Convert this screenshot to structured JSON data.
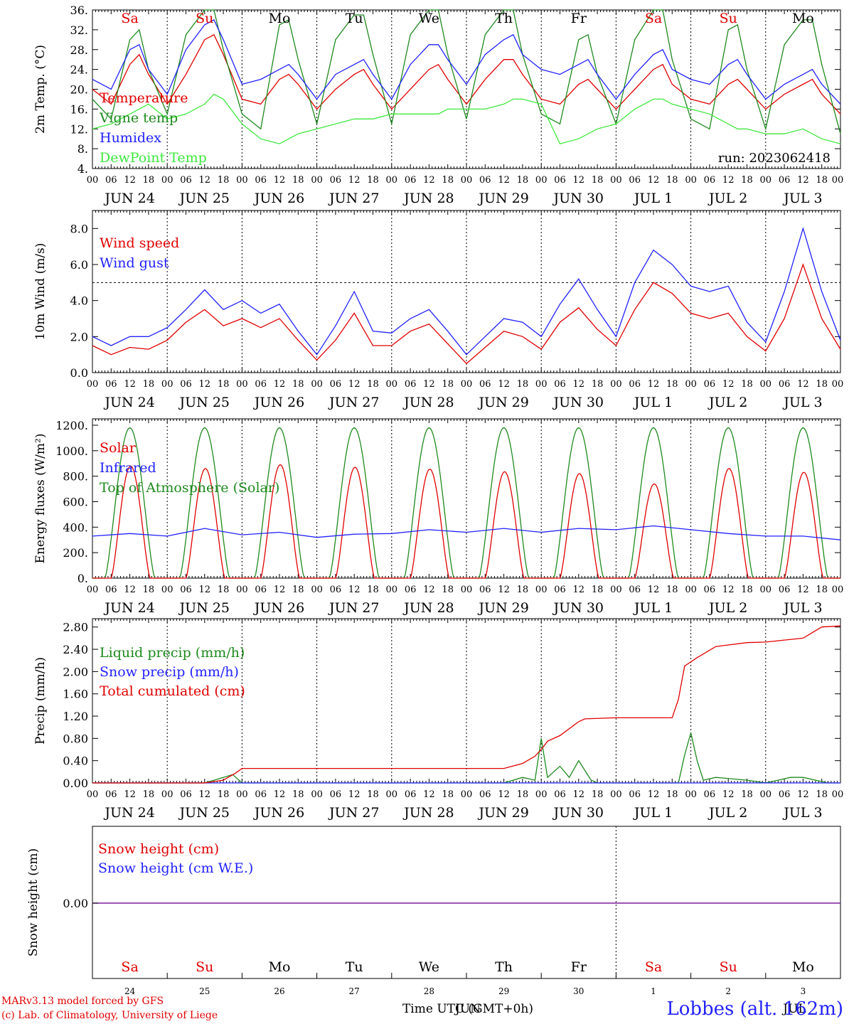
{
  "days": {
    "names": [
      "Sa",
      "Su",
      "Mo",
      "Tu",
      "We",
      "Th",
      "Fr",
      "Sa",
      "Su",
      "Mo"
    ],
    "colors": [
      "#e00000",
      "#e00000",
      "#000000",
      "#000000",
      "#000000",
      "#000000",
      "#000000",
      "#e00000",
      "#e00000",
      "#000000"
    ],
    "dates": [
      "JUN 24",
      "JUN 25",
      "JUN 26",
      "JUN 27",
      "JUN 28",
      "JUN 29",
      "JUN 30",
      "JUL  1",
      "JUL  2",
      "JUL  3"
    ],
    "day_numbers": [
      "24",
      "25",
      "26",
      "27",
      "28",
      "29",
      "30",
      "1",
      "2",
      "3"
    ],
    "hours": [
      "00",
      "06",
      "12",
      "18"
    ],
    "end_hour": "00"
  },
  "chart_data": [
    {
      "type": "line",
      "ylabel": "2m Temp. (°C)",
      "ylim": [
        4,
        36
      ],
      "yticks": [
        "4.",
        "8.",
        "12.",
        "16.",
        "20.",
        "24.",
        "28.",
        "32.",
        "36."
      ],
      "annotation": "run: 2023062418",
      "x_unit": "hours since JUN 24 00 UTC",
      "series": [
        {
          "name": "Temperature",
          "color": "#e00000",
          "x": [
            0,
            6,
            12,
            15,
            18,
            24,
            30,
            36,
            39,
            42,
            48,
            54,
            60,
            63,
            66,
            72,
            78,
            84,
            87,
            90,
            96,
            102,
            108,
            111,
            114,
            120,
            126,
            132,
            135,
            138,
            144,
            150,
            156,
            159,
            162,
            168,
            174,
            180,
            183,
            186,
            192,
            198,
            204,
            207,
            210,
            216,
            222,
            228,
            231,
            234,
            240
          ],
          "y": [
            20,
            17,
            25,
            27,
            23,
            17,
            23,
            30,
            31,
            27,
            18,
            17,
            22,
            23,
            21,
            16,
            20,
            23,
            24,
            21,
            16,
            20,
            24,
            25,
            22,
            17,
            22,
            26,
            26,
            23,
            18,
            17,
            21,
            22,
            20,
            16,
            20,
            24,
            25,
            21,
            18,
            17,
            21,
            22,
            20,
            16,
            19,
            21,
            22,
            19,
            15
          ]
        },
        {
          "name": "Vigne temp",
          "color": "#1e8a1e",
          "x": [
            0,
            6,
            12,
            15,
            18,
            24,
            30,
            36,
            39,
            42,
            48,
            54,
            60,
            63,
            66,
            72,
            78,
            84,
            87,
            90,
            96,
            102,
            108,
            111,
            114,
            120,
            126,
            132,
            135,
            138,
            144,
            150,
            156,
            159,
            162,
            168,
            174,
            180,
            183,
            186,
            192,
            198,
            204,
            207,
            210,
            216,
            222,
            228,
            231,
            234,
            240
          ],
          "y": [
            18,
            14,
            30,
            32,
            24,
            15,
            31,
            36,
            36,
            28,
            15,
            12,
            33,
            34,
            26,
            13,
            30,
            35,
            35,
            27,
            13,
            31,
            36,
            36,
            27,
            14,
            31,
            36,
            36,
            27,
            15,
            13,
            30,
            31,
            23,
            13,
            30,
            36,
            36,
            26,
            14,
            12,
            32,
            33,
            24,
            12,
            29,
            34,
            34,
            25,
            11
          ]
        },
        {
          "name": "Humidex",
          "color": "#2222ff",
          "x": [
            0,
            6,
            12,
            15,
            18,
            24,
            30,
            36,
            39,
            42,
            48,
            54,
            60,
            63,
            66,
            72,
            78,
            84,
            87,
            90,
            96,
            102,
            108,
            111,
            114,
            120,
            126,
            132,
            135,
            138,
            144,
            150,
            156,
            159,
            162,
            168,
            174,
            180,
            183,
            186,
            192,
            198,
            204,
            207,
            210,
            216,
            222,
            228,
            231,
            234,
            240
          ],
          "y": [
            22,
            20,
            28,
            29,
            24,
            19,
            28,
            33,
            34,
            30,
            21,
            22,
            24,
            25,
            23,
            18,
            23,
            25,
            26,
            23,
            18,
            25,
            29,
            29,
            26,
            21,
            27,
            30,
            31,
            27,
            24,
            23,
            25,
            26,
            23,
            18,
            23,
            27,
            28,
            24,
            22,
            21,
            25,
            26,
            23,
            18,
            21,
            23,
            24,
            21,
            17
          ]
        },
        {
          "name": "DewPoint Temp",
          "color": "#3ee83e",
          "x": [
            0,
            6,
            12,
            15,
            18,
            24,
            30,
            36,
            39,
            42,
            48,
            54,
            60,
            63,
            66,
            72,
            78,
            84,
            87,
            90,
            96,
            102,
            108,
            111,
            114,
            120,
            126,
            132,
            135,
            138,
            144,
            150,
            156,
            159,
            162,
            168,
            174,
            180,
            183,
            186,
            192,
            198,
            204,
            207,
            210,
            216,
            222,
            228,
            231,
            234,
            240
          ],
          "y": [
            12,
            13,
            15,
            16,
            17,
            14,
            15,
            17,
            19,
            18,
            13,
            10,
            9,
            10,
            11,
            12,
            13,
            14,
            14,
            14,
            15,
            15,
            15,
            15,
            16,
            16,
            16,
            17,
            18,
            18,
            17,
            9,
            10,
            11,
            12,
            13,
            16,
            18,
            18,
            17,
            16,
            15,
            13,
            12,
            12,
            11,
            11,
            12,
            11,
            10,
            9
          ]
        }
      ]
    },
    {
      "type": "line",
      "ylabel": "10m Wind (m/s)",
      "ylim": [
        0,
        9
      ],
      "yticks": [
        "0.0",
        "2.0",
        "4.0",
        "6.0",
        "8.0"
      ],
      "reference_line": 5,
      "x_unit": "hours since JUN 24 00 UTC",
      "series": [
        {
          "name": "Wind speed",
          "color": "#e00000",
          "x": [
            0,
            6,
            12,
            18,
            24,
            30,
            36,
            42,
            48,
            54,
            60,
            66,
            72,
            78,
            84,
            90,
            96,
            102,
            108,
            114,
            120,
            126,
            132,
            138,
            144,
            150,
            156,
            162,
            168,
            174,
            180,
            186,
            192,
            198,
            204,
            210,
            216,
            222,
            228,
            234,
            240
          ],
          "y": [
            1.5,
            1.0,
            1.4,
            1.3,
            1.8,
            2.8,
            3.5,
            2.6,
            3.0,
            2.5,
            3.0,
            1.8,
            0.7,
            1.8,
            3.3,
            1.5,
            1.5,
            2.3,
            2.7,
            1.6,
            0.5,
            1.4,
            2.3,
            2.0,
            1.3,
            2.8,
            3.6,
            2.4,
            1.5,
            3.5,
            5.0,
            4.4,
            3.3,
            3.0,
            3.3,
            2.0,
            1.2,
            3.0,
            6.0,
            3.0,
            1.3
          ]
        },
        {
          "name": "Wind gust",
          "color": "#2222ff",
          "x": [
            0,
            6,
            12,
            18,
            24,
            30,
            36,
            42,
            48,
            54,
            60,
            66,
            72,
            78,
            84,
            90,
            96,
            102,
            108,
            114,
            120,
            126,
            132,
            138,
            144,
            150,
            156,
            162,
            168,
            174,
            180,
            186,
            192,
            198,
            204,
            210,
            216,
            222,
            228,
            234,
            240
          ],
          "y": [
            2.0,
            1.5,
            2.0,
            2.0,
            2.5,
            3.5,
            4.6,
            3.5,
            4.0,
            3.3,
            3.8,
            2.3,
            1.0,
            2.6,
            4.5,
            2.3,
            2.2,
            3.0,
            3.5,
            2.3,
            1.0,
            2.0,
            3.0,
            2.8,
            2.0,
            3.8,
            5.2,
            3.5,
            2.0,
            5.0,
            6.8,
            6.0,
            4.8,
            4.5,
            4.8,
            2.8,
            1.7,
            4.5,
            8.0,
            4.5,
            1.8
          ]
        }
      ]
    },
    {
      "type": "line",
      "ylabel": "Energy fluxes (W/m²)",
      "ylim": [
        0,
        1250
      ],
      "yticks": [
        "0.",
        "200.",
        "400.",
        "600.",
        "800.",
        "1000.",
        "1200."
      ],
      "x_unit": "hours since JUN 24 00 UTC",
      "series": [
        {
          "name": "Solar",
          "color": "#e00000",
          "kind": "solar",
          "daily_peak": [
            880,
            860,
            890,
            870,
            855,
            835,
            820,
            740,
            860,
            830
          ]
        },
        {
          "name": "Infrared",
          "color": "#2222ff",
          "x": [
            0,
            12,
            24,
            36,
            48,
            60,
            72,
            84,
            96,
            108,
            120,
            132,
            144,
            156,
            168,
            180,
            192,
            204,
            216,
            228,
            240
          ],
          "y": [
            330,
            350,
            330,
            390,
            340,
            360,
            320,
            345,
            350,
            380,
            360,
            390,
            360,
            390,
            380,
            410,
            380,
            350,
            330,
            330,
            300
          ]
        },
        {
          "name": "Top of Atmosphere (Solar)",
          "color": "#1e8a1e",
          "kind": "toa",
          "daily_peak": [
            1180,
            1180,
            1180,
            1180,
            1180,
            1180,
            1180,
            1180,
            1180,
            1180
          ]
        }
      ]
    },
    {
      "type": "line",
      "ylabel": "Precip (mm/h)",
      "ylim": [
        0,
        2.95
      ],
      "yticks": [
        "0.00",
        "0.40",
        "0.80",
        "1.20",
        "1.60",
        "2.00",
        "2.40",
        "2.80"
      ],
      "x_unit": "hours since JUN 24 00 UTC",
      "series": [
        {
          "name": "Liquid precip (mm/h)",
          "color": "#1e8a1e",
          "x": [
            0,
            36,
            42,
            45,
            48,
            54,
            132,
            138,
            142,
            144,
            146,
            150,
            153,
            156,
            160,
            162,
            166,
            188,
            190,
            192,
            194,
            196,
            200,
            210,
            216,
            220,
            224,
            228,
            232,
            236,
            240
          ],
          "y": [
            0,
            0,
            0.1,
            0.15,
            0,
            0,
            0,
            0.1,
            0.05,
            0.8,
            0.1,
            0.3,
            0.1,
            0.4,
            0.05,
            0,
            0,
            0,
            0.5,
            0.9,
            0.4,
            0.05,
            0.1,
            0.05,
            0,
            0.05,
            0.1,
            0.1,
            0.05,
            0,
            0
          ]
        },
        {
          "name": "Snow precip (mm/h)",
          "color": "#2222ff",
          "x": [
            0,
            240
          ],
          "y": [
            0,
            0
          ]
        },
        {
          "name": "Total cumulated (cm)",
          "color": "#e00000",
          "x": [
            0,
            36,
            42,
            46,
            48,
            132,
            138,
            142,
            144,
            146,
            150,
            156,
            158,
            168,
            186,
            188,
            190,
            194,
            200,
            210,
            216,
            228,
            234,
            240
          ],
          "y": [
            0,
            0,
            0.05,
            0.18,
            0.26,
            0.26,
            0.35,
            0.48,
            0.6,
            0.75,
            0.85,
            1.1,
            1.15,
            1.17,
            1.17,
            1.5,
            2.1,
            2.25,
            2.45,
            2.52,
            2.53,
            2.6,
            2.8,
            2.82
          ]
        }
      ]
    },
    {
      "type": "line",
      "ylabel": "Snow height (cm)",
      "yticks": [
        "0.00"
      ],
      "x_unit": "hours since JUN 24 00 UTC",
      "series": [
        {
          "name": "Snow height (cm)",
          "color": "#e00000",
          "x": [
            0,
            240
          ],
          "y": [
            0,
            0
          ]
        },
        {
          "name": "Snow height (cm W.E.)",
          "color": "#2222ff",
          "x": [
            0,
            240
          ],
          "y": [
            0,
            0
          ]
        }
      ],
      "xlabel_overlap": "JUN",
      "xlabel": "Time UTC (GMT+0h)",
      "end_label": "JUL"
    }
  ],
  "footer": {
    "credit_line1": "MARv3.13 model forced by GFS",
    "credit_line2": "(c) Lab. of Climatology, University of Liege",
    "station": "Lobbes (alt. 162m)"
  }
}
